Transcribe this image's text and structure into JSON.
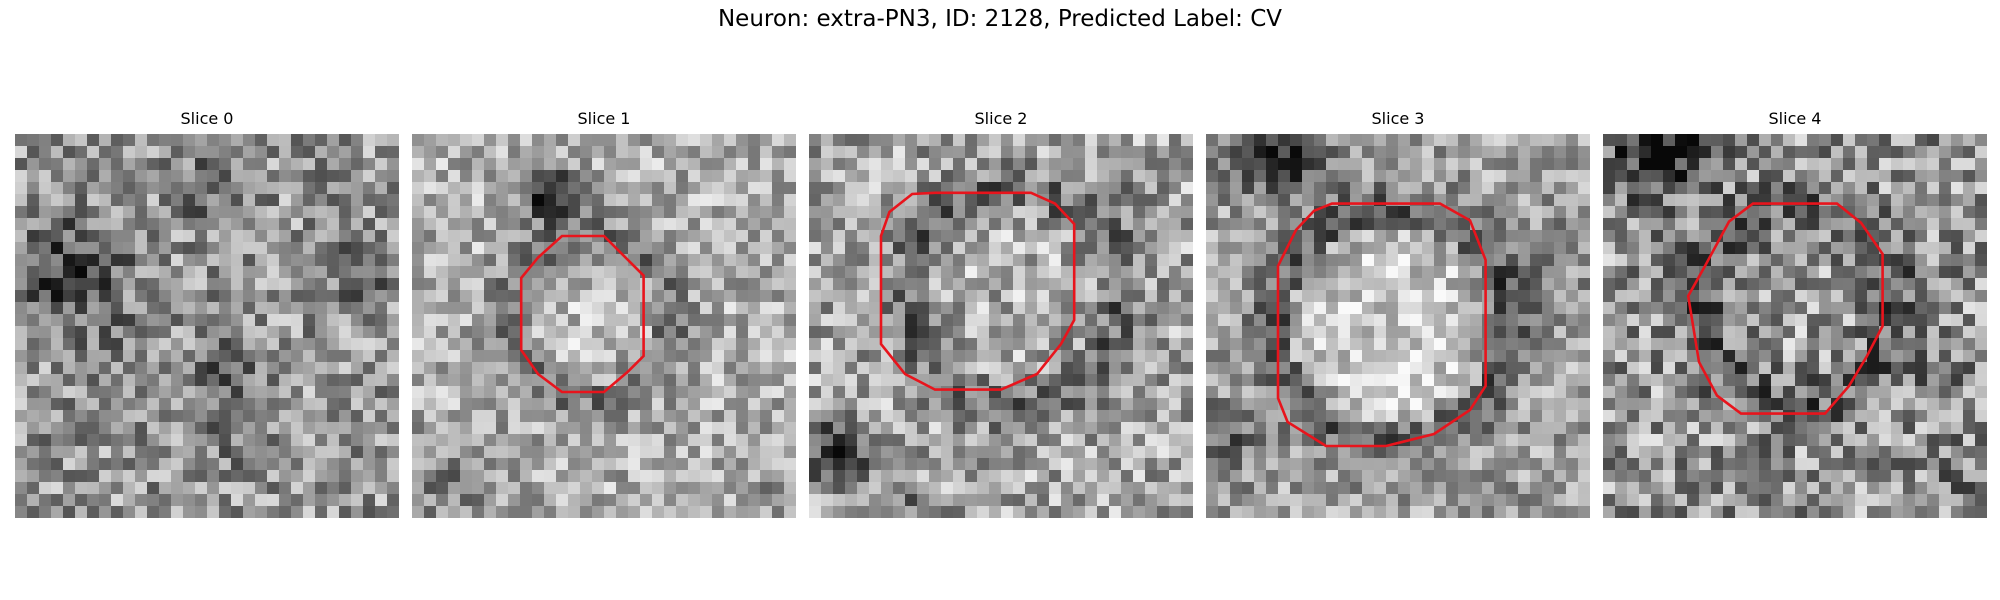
{
  "figure": {
    "title": "Neuron: extra-PN3, ID: 2128, Predicted Label: CV"
  },
  "panels": [
    {
      "title": "Slice 0",
      "has_contour": false
    },
    {
      "title": "Slice 1",
      "has_contour": true
    },
    {
      "title": "Slice 2",
      "has_contour": true
    },
    {
      "title": "Slice 3",
      "has_contour": true
    },
    {
      "title": "Slice 4",
      "has_contour": true
    }
  ],
  "colors": {
    "contour": "#e8141c",
    "background": "#ffffff"
  }
}
